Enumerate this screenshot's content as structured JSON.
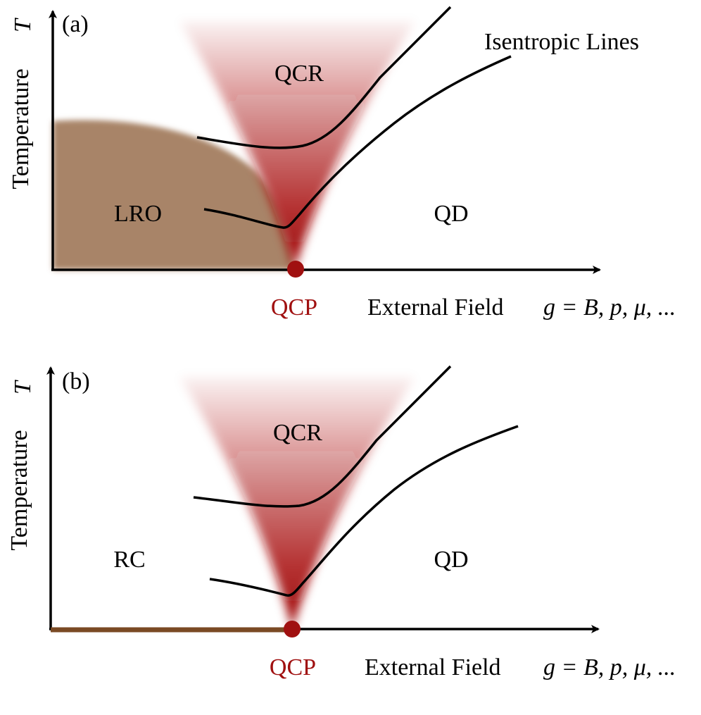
{
  "panels": [
    {
      "id": "a",
      "panel_label": "(a)",
      "y_axis_label": "Temperature",
      "y_axis_symbol": "T",
      "x_axis_label": "External Field",
      "x_axis_math": "g = B, p, μ, ...",
      "qcp_label": "QCP",
      "regions": {
        "ordered": "LRO",
        "critical": "QCR",
        "disordered": "QD"
      },
      "annotation": "Isentropic Lines",
      "ordered_phase_color": "#a88467",
      "critical_color": "#a81010"
    },
    {
      "id": "b",
      "panel_label": "(b)",
      "y_axis_label": "Temperature",
      "y_axis_symbol": "T",
      "x_axis_label": "External Field",
      "x_axis_math": "g = B, p, μ, ...",
      "qcp_label": "QCP",
      "regions": {
        "ordered": "RC",
        "critical": "QCR",
        "disordered": "QD"
      },
      "ordered_phase_color": "#7a4a24",
      "critical_color": "#a81010"
    }
  ]
}
